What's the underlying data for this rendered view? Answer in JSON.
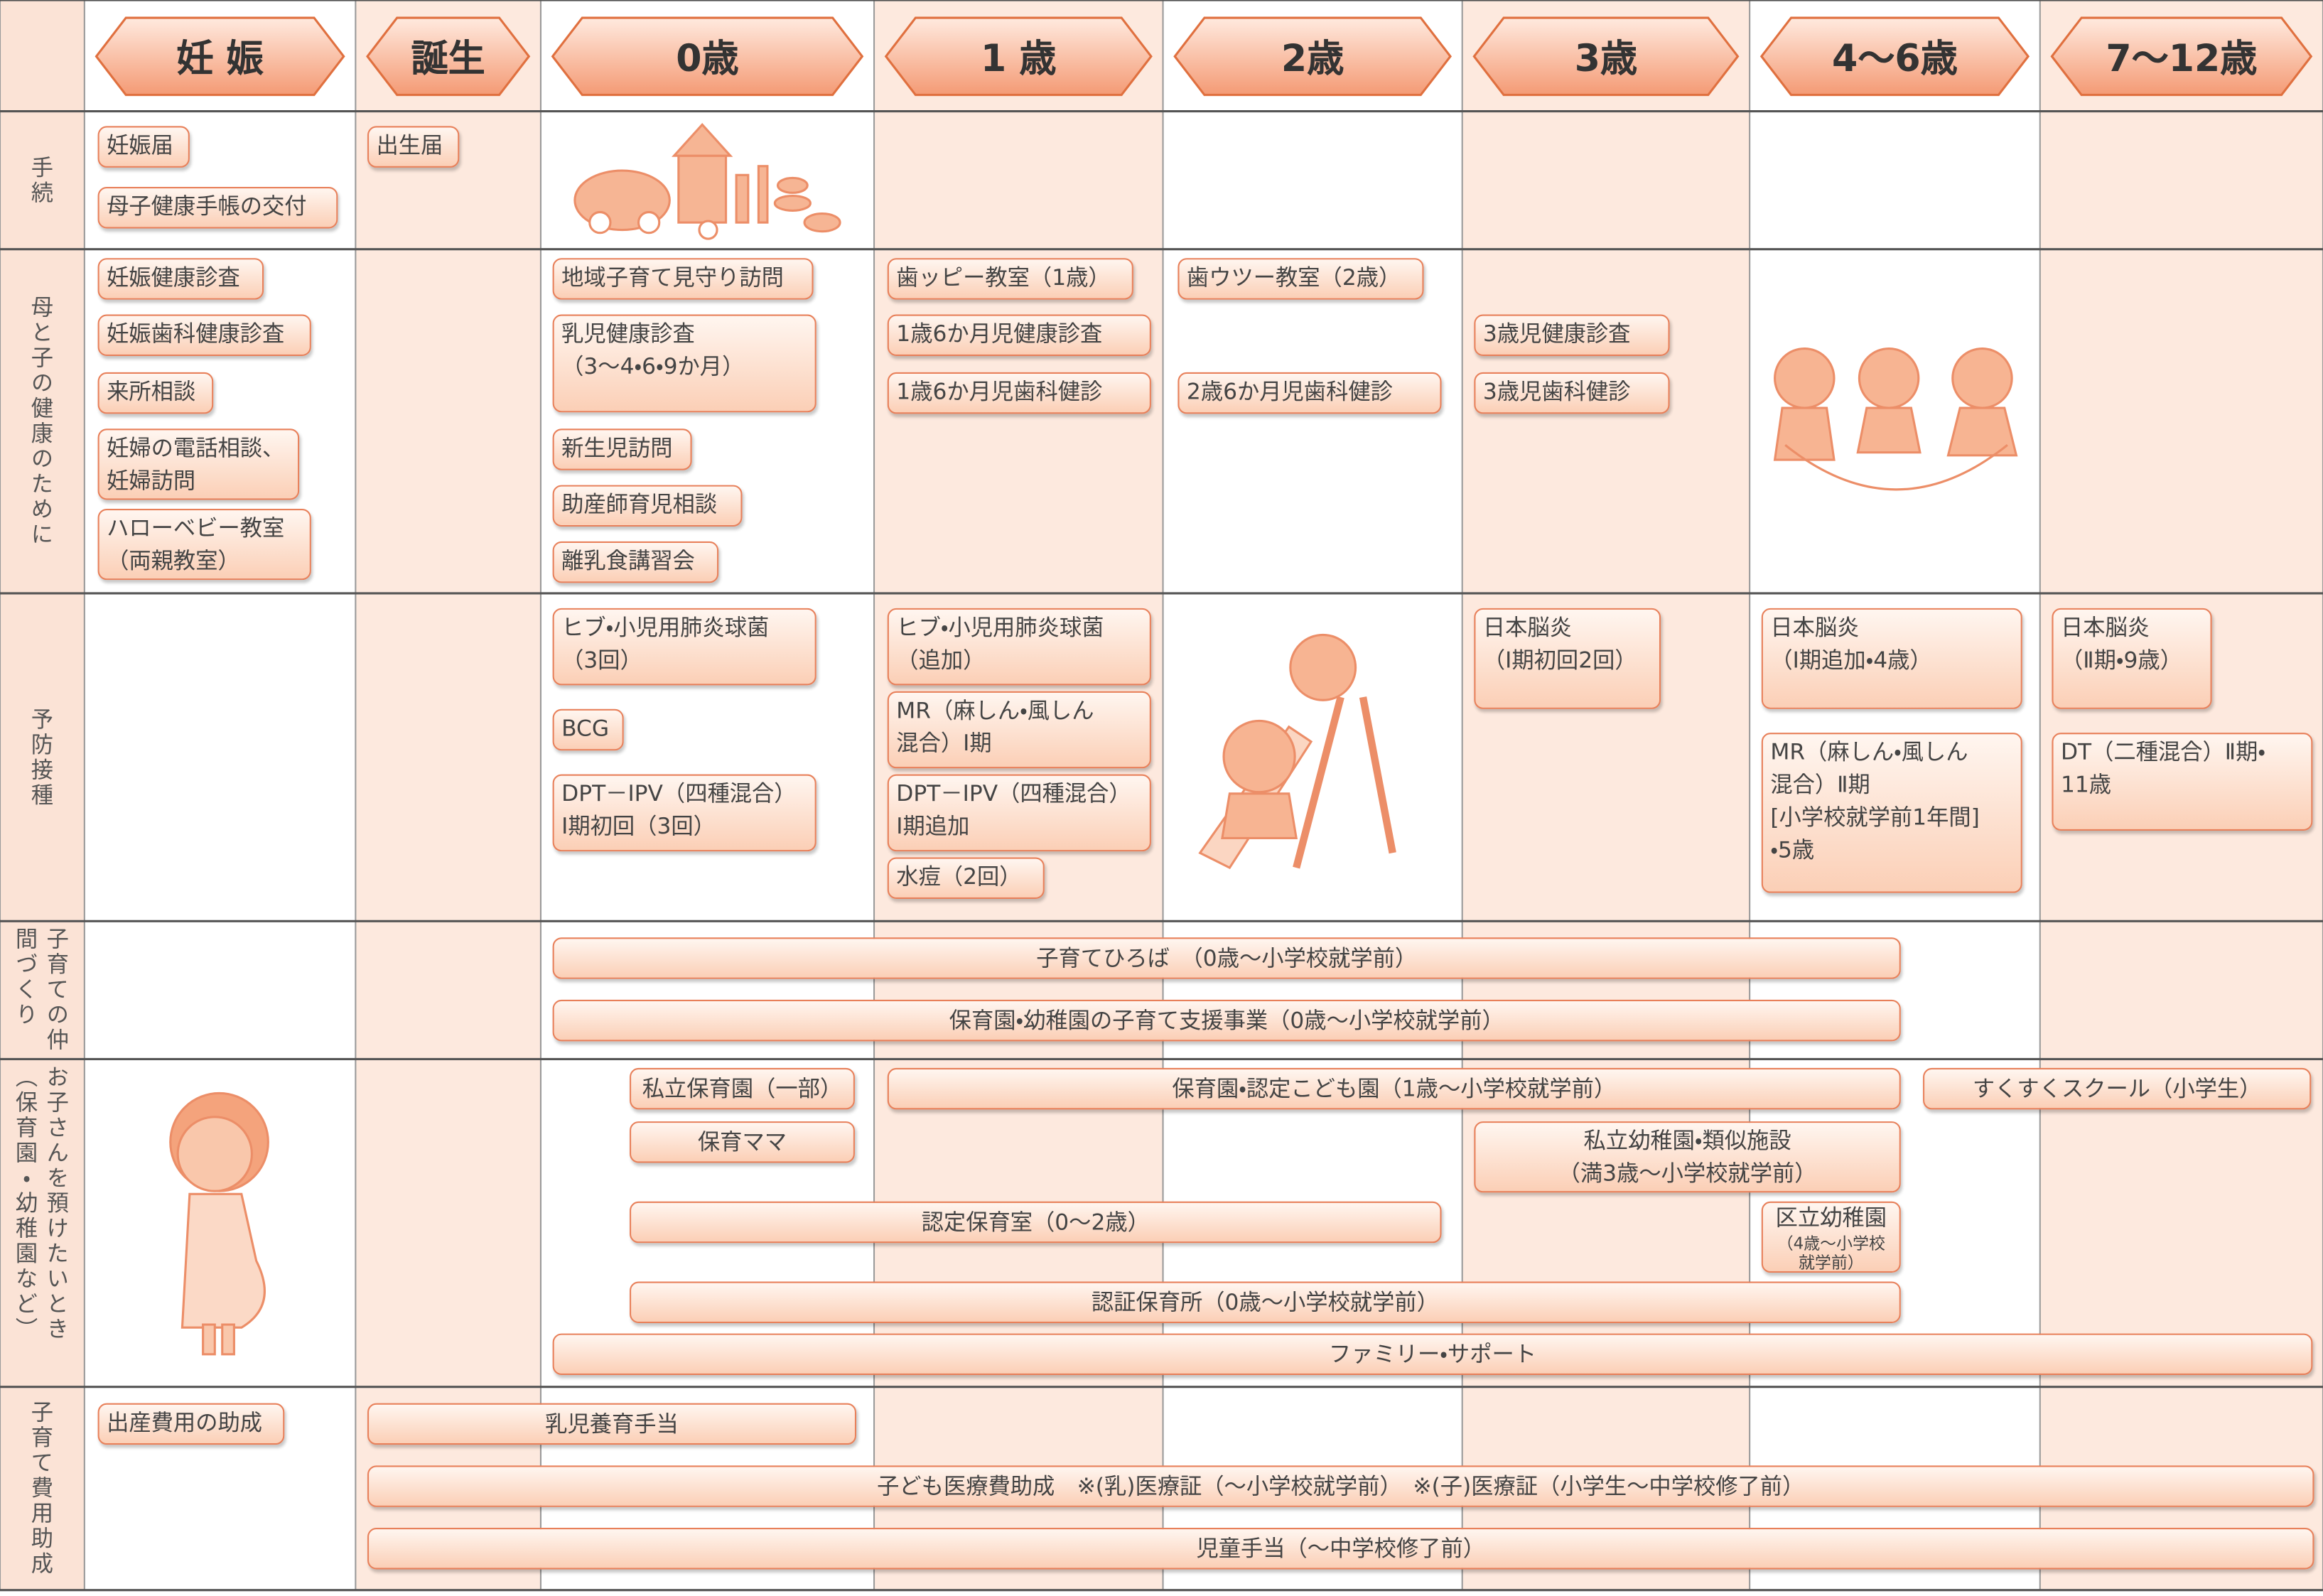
{
  "header": {
    "columns": [
      "妊 娠",
      "誕生",
      "0歳",
      "1 歳",
      "2歳",
      "3歳",
      "4～6歳",
      "7～12歳"
    ]
  },
  "rows": [
    {
      "label": "手続",
      "items": [
        "妊娠届",
        "母子健康手帳の交付",
        "出生届"
      ]
    },
    {
      "label": "母と子の健康のために",
      "items": [
        "妊娠健康診査",
        "妊娠歯科健康診査",
        "来所相談",
        "妊婦の電話相談、\n妊婦訪問",
        "ハローベビー教室\n（両親教室）",
        "地域子育て見守り訪問",
        "乳児健康診査\n（3～4・6・9か月）",
        "新生児訪問",
        "助産師育児相談",
        "離乳食講習会",
        "歯ッピー教室（1歳）",
        "1歳6か月児健康診査",
        "1歳6か月児歯科健診",
        "歯ウツー教室（2歳）",
        "2歳6か月児歯科健診",
        "3歳児健康診査",
        "3歳児歯科健診"
      ]
    },
    {
      "label": "予防接種",
      "items": [
        "ヒブ・小児用肺炎球菌\n（3回）",
        "BCG",
        "DPT－IPV（四種混合）\nⅠ期初回（3回）",
        "ヒブ・小児用肺炎球菌\n（追加）",
        "MR（麻しん・風しん\n混合）Ⅰ期",
        "DPT－IPV（四種混合）\nⅠ期追加",
        "水痘（2回）",
        "日本脳炎\n（Ⅰ期初回2回）",
        "日本脳炎\n（Ⅰ期追加・4歳）",
        "MR（麻しん・風しん\n混合）Ⅱ期\n[小学校就学前1年間]\n・5歳",
        "日本脳炎\n（Ⅱ期・9歳）",
        "DT（二種混合）Ⅱ期・\n11歳"
      ]
    },
    {
      "label": "子育ての仲間づくり",
      "items": [
        "子育てひろば　（0歳～小学校就学前）",
        "保育園・幼稚園の子育て支援事業（0歳～小学校就学前）"
      ]
    },
    {
      "label": "お子さんを預けたいとき（保育園・幼稚園など）",
      "items": [
        "私立保育園（一部）",
        "保育ママ",
        "保育園・認定こども園（1歳～小学校就学前）",
        "すくすくスクール（小学生）",
        "私立幼稚園・類似施設\n（満3歳～小学校就学前）",
        "認定保育室（0～2歳）",
        "区立幼稚園",
        "（4歳～小学校就学前）",
        "認証保育所（0歳～小学校就学前）",
        "ファミリー・サポート"
      ]
    },
    {
      "label": "子育て費用助成",
      "items": [
        "出産費用の助成",
        "乳児養育手当",
        "子ども医療費助成　※(乳)医療証（～小学校就学前）　※(子)医療証（小学生～中学校修了前）",
        "児童手当（～中学校修了前）"
      ]
    }
  ]
}
